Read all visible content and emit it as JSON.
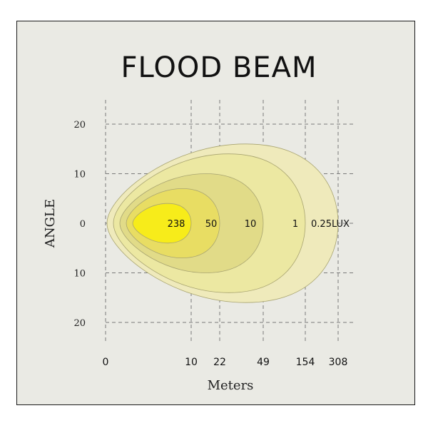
{
  "chart_data": {
    "type": "beam-pattern",
    "title": "FLOOD  BEAM",
    "xlabel": "Meters",
    "ylabel": "ANGLE",
    "x_ticks": [
      "0",
      "10",
      "22",
      "49",
      "154",
      "308"
    ],
    "y_ticks": [
      "20",
      "10",
      "0",
      "10",
      "20"
    ],
    "grid": true,
    "contours": [
      {
        "label": "0.25LUX",
        "reach_m": 308,
        "half_angle_deg": 16,
        "color": "#efeabb"
      },
      {
        "label": "1",
        "reach_m": 154,
        "half_angle_deg": 14,
        "color": "#ece8a2"
      },
      {
        "label": "10",
        "reach_m": 49,
        "half_angle_deg": 10,
        "color": "#e1db88"
      },
      {
        "label": "50",
        "reach_m": 22,
        "half_angle_deg": 7,
        "color": "#e8dd63"
      },
      {
        "label": "238",
        "reach_m": 10,
        "half_angle_deg": 4,
        "color": "#f7ec1a"
      }
    ]
  }
}
